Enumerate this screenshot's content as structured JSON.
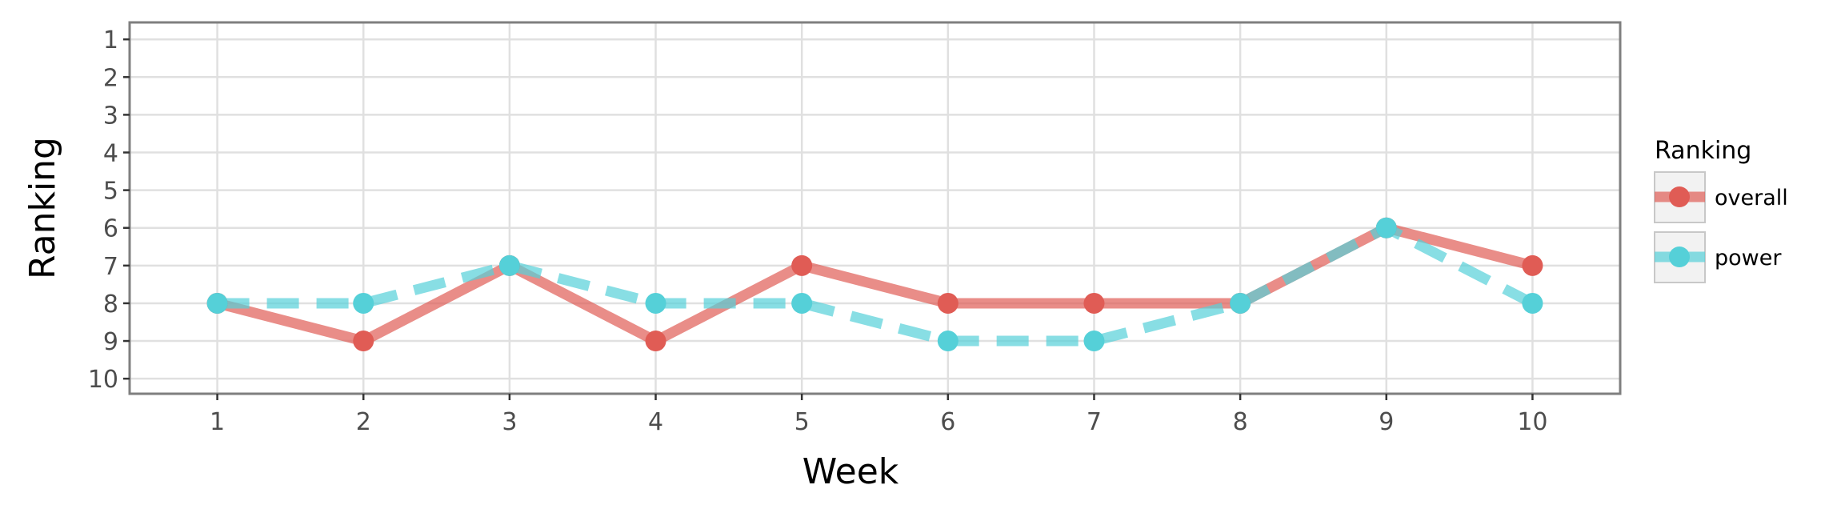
{
  "chart_data": {
    "type": "line",
    "xlabel": "Week",
    "ylabel": "Ranking",
    "x": [
      1,
      2,
      3,
      4,
      5,
      6,
      7,
      8,
      9,
      10
    ],
    "xlim": [
      0.4,
      10.6
    ],
    "ylim": [
      10.4,
      0.55
    ],
    "y_reversed": true,
    "x_ticks": [
      1,
      2,
      3,
      4,
      5,
      6,
      7,
      8,
      9,
      10
    ],
    "y_ticks": [
      1,
      2,
      3,
      4,
      5,
      6,
      7,
      8,
      9,
      10
    ],
    "grid": true,
    "legend": {
      "title": "Ranking",
      "placement": "right"
    },
    "series": [
      {
        "name": "overall",
        "values": [
          8,
          9,
          7,
          9,
          7,
          8,
          8,
          8,
          6,
          7
        ],
        "color": "#e05c55",
        "line_style": "solid"
      },
      {
        "name": "power",
        "values": [
          8,
          8,
          7,
          8,
          8,
          9,
          9,
          8,
          6,
          8
        ],
        "color": "#55d0d8",
        "line_style": "dashed"
      }
    ]
  }
}
